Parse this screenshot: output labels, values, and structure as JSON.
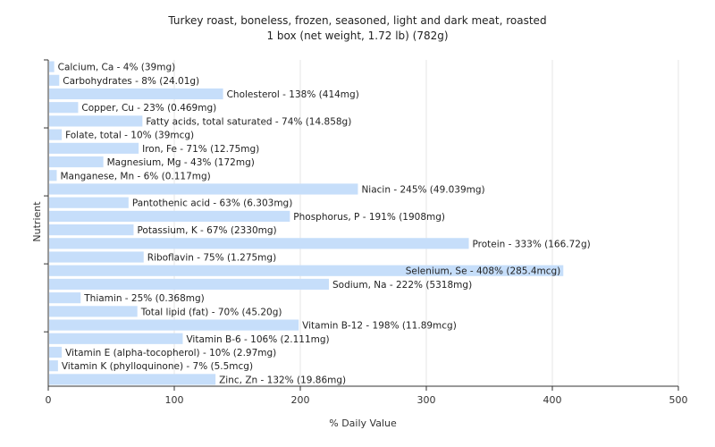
{
  "chart_data": {
    "type": "bar",
    "orientation": "horizontal",
    "title": "Turkey roast, boneless, frozen, seasoned, light and dark meat, roasted",
    "subtitle": "1 box (net weight, 1.72 lb) (782g)",
    "xlabel": "% Daily Value",
    "ylabel": "Nutrient",
    "xlim": [
      0,
      500
    ],
    "xticks": [
      0,
      100,
      200,
      300,
      400,
      500
    ],
    "grid": true,
    "bar_color": "#c6defa",
    "categories": [
      "Calcium, Ca",
      "Carbohydrates",
      "Cholesterol",
      "Copper, Cu",
      "Fatty acids, total saturated",
      "Folate, total",
      "Iron, Fe",
      "Magnesium, Mg",
      "Manganese, Mn",
      "Niacin",
      "Pantothenic acid",
      "Phosphorus, P",
      "Potassium, K",
      "Protein",
      "Riboflavin",
      "Selenium, Se",
      "Sodium, Na",
      "Thiamin",
      "Total lipid (fat)",
      "Vitamin B-12",
      "Vitamin B-6",
      "Vitamin E (alpha-tocopherol)",
      "Vitamin K (phylloquinone)",
      "Zinc, Zn"
    ],
    "values": [
      4,
      8,
      138,
      23,
      74,
      10,
      71,
      43,
      6,
      245,
      63,
      191,
      67,
      333,
      75,
      408,
      222,
      25,
      70,
      198,
      106,
      10,
      7,
      132
    ],
    "labels": [
      "Calcium, Ca - 4% (39mg)",
      "Carbohydrates - 8% (24.01g)",
      "Cholesterol - 138% (414mg)",
      "Copper, Cu - 23% (0.469mg)",
      "Fatty acids, total saturated - 74% (14.858g)",
      "Folate, total - 10% (39mcg)",
      "Iron, Fe - 71% (12.75mg)",
      "Magnesium, Mg - 43% (172mg)",
      "Manganese, Mn - 6% (0.117mg)",
      "Niacin - 245% (49.039mg)",
      "Pantothenic acid - 63% (6.303mg)",
      "Phosphorus, P - 191% (1908mg)",
      "Potassium, K - 67% (2330mg)",
      "Protein - 333% (166.72g)",
      "Riboflavin - 75% (1.275mg)",
      "Selenium, Se - 408% (285.4mcg)",
      "Sodium, Na - 222% (5318mg)",
      "Thiamin - 25% (0.368mg)",
      "Total lipid (fat) - 70% (45.20g)",
      "Vitamin B-12 - 198% (11.89mcg)",
      "Vitamin B-6 - 106% (2.111mg)",
      "Vitamin E (alpha-tocopherol) - 10% (2.97mg)",
      "Vitamin K (phylloquinone) - 7% (5.5mcg)",
      "Zinc, Zn - 132% (19.86mg)"
    ]
  }
}
